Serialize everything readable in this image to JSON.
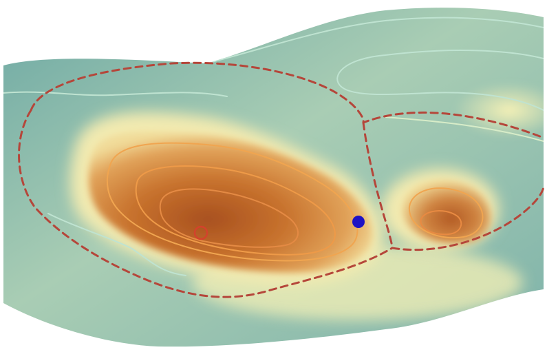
{
  "colors": {
    "background": "#ffffff",
    "surface_low": "#6ea9a4",
    "surface_mid": "#c7dcaf",
    "surface_rim": "#f4f0b6",
    "basin_light": "#e1a259",
    "basin_mid": "#c8732e",
    "basin_deep": "#a8501f",
    "contour_low": "#bfe3d1",
    "contour_high": "#f0a550",
    "contour_deep": "#e07a3a",
    "boundary_line": "#b5463a",
    "marker_point": "#1d12c4",
    "minimum_marker": "#d4422c"
  },
  "figure": {
    "surface": "terrain-surface",
    "boundary_style": "dashed",
    "basins": [
      "main-basin",
      "secondary-basin"
    ],
    "markers": [
      "marker-point",
      "basin-minimum"
    ]
  }
}
